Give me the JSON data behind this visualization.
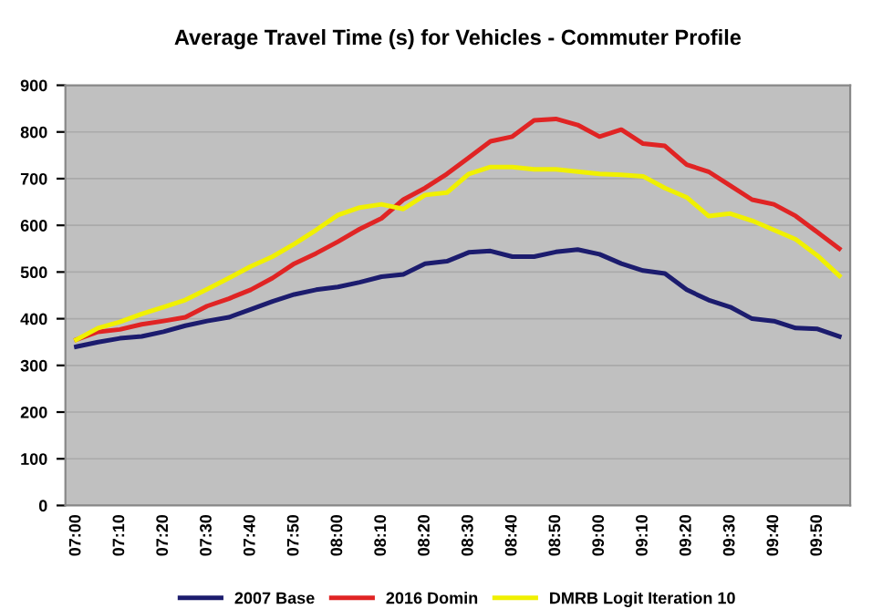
{
  "chart_data": {
    "type": "line",
    "title": "Average Travel Time (s) for Vehicles - Commuter Profile",
    "categories": [
      "07:00",
      null,
      "07:10",
      null,
      "07:20",
      null,
      "07:30",
      null,
      "07:40",
      null,
      "07:50",
      null,
      "08:00",
      null,
      "08:10",
      null,
      "08:20",
      null,
      "08:30",
      null,
      "08:40",
      null,
      "08:50",
      null,
      "09:00",
      null,
      "09:10",
      null,
      "09:20",
      null,
      "09:30",
      null,
      "09:40",
      null,
      "09:50",
      null
    ],
    "series": [
      {
        "name": "2007 Base",
        "color": "#1c1c6e",
        "values": [
          340,
          350,
          358,
          362,
          372,
          385,
          395,
          403,
          420,
          437,
          452,
          462,
          468,
          478,
          490,
          495,
          518,
          523,
          542,
          545,
          533,
          533,
          543,
          548,
          538,
          518,
          503,
          497,
          462,
          440,
          425,
          400,
          395,
          380,
          378,
          362
        ]
      },
      {
        "name": "2016 Domin",
        "color": "#e02424",
        "values": [
          355,
          372,
          377,
          388,
          395,
          403,
          427,
          443,
          462,
          487,
          518,
          540,
          565,
          592,
          615,
          655,
          680,
          710,
          745,
          780,
          790,
          825,
          828,
          815,
          790,
          805,
          775,
          770,
          730,
          715,
          685,
          655,
          645,
          620,
          585,
          550
        ]
      },
      {
        "name": "DMRB Logit Iteration 10",
        "color": "#f0f000",
        "values": [
          355,
          380,
          393,
          410,
          425,
          440,
          463,
          487,
          512,
          533,
          560,
          590,
          622,
          638,
          645,
          635,
          665,
          670,
          710,
          725,
          725,
          720,
          720,
          715,
          710,
          708,
          705,
          680,
          660,
          620,
          625,
          610,
          590,
          570,
          535,
          492
        ]
      }
    ],
    "ylim": [
      0,
      900
    ],
    "yticks": [
      0,
      100,
      200,
      300,
      400,
      500,
      600,
      700,
      800,
      900
    ],
    "grid": "y",
    "legend": "bottom"
  }
}
